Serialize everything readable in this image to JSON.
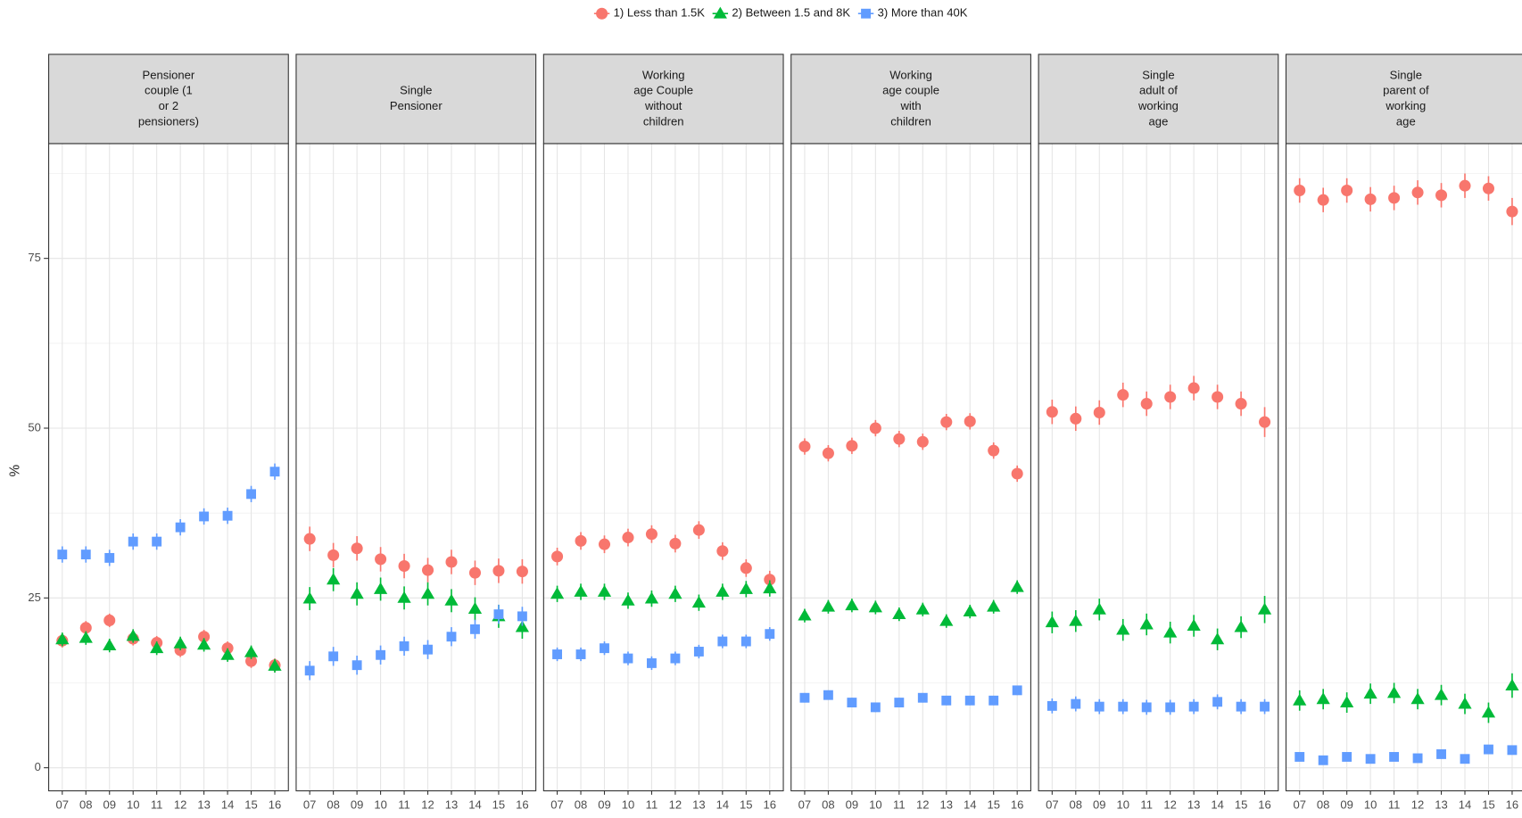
{
  "chart_data": {
    "type": "scatter",
    "y_label": "%",
    "ylim": [
      -3.4,
      91.9
    ],
    "yticks": [
      0,
      25,
      50,
      75
    ],
    "grid": true,
    "legend": "top",
    "categories": [
      "07",
      "08",
      "09",
      "10",
      "11",
      "12",
      "13",
      "14",
      "15",
      "16"
    ],
    "series": [
      {
        "name": "1) Less than 1.5K",
        "color": "#f8766d",
        "marker": "circle"
      },
      {
        "name": "2) Between 1.5 and 8K",
        "color": "#00ba38",
        "marker": "triangle"
      },
      {
        "name": "3) More than 40K",
        "color": "#619cff",
        "marker": "square"
      }
    ],
    "panels": [
      {
        "title": [
          "Pensioner",
          "couple (1",
          "or 2",
          "pensioners)"
        ],
        "series": [
          {
            "values": [
              18.7,
              20.6,
              21.7,
              19,
              18.4,
              17.3,
              19.3,
              17.6,
              15.7,
              15.1
            ],
            "errors": [
              1,
              1,
              1,
              1,
              1,
              1,
              1,
              1,
              1,
              1
            ]
          },
          {
            "values": [
              18.9,
              19.1,
              18,
              19.4,
              17.6,
              18.3,
              18.1,
              16.6,
              17,
              15
            ],
            "errors": [
              1,
              1,
              1,
              1,
              1,
              1,
              1,
              1,
              1,
              1
            ]
          },
          {
            "values": [
              31.4,
              31.4,
              30.9,
              33.3,
              33.3,
              35.4,
              37,
              37.1,
              40.3,
              43.6
            ],
            "errors": [
              1.2,
              1.2,
              1.2,
              1.2,
              1.2,
              1.2,
              1.2,
              1.2,
              1.2,
              1.2
            ]
          }
        ]
      },
      {
        "title": [
          "Single",
          "Pensioner"
        ],
        "series": [
          {
            "values": [
              33.7,
              31.3,
              32.3,
              30.7,
              29.7,
              29.1,
              30.3,
              28.7,
              29,
              28.9
            ],
            "errors": [
              1.8,
              1.8,
              1.8,
              1.8,
              1.8,
              1.8,
              1.8,
              1.8,
              1.8,
              1.8
            ]
          },
          {
            "values": [
              24.9,
              27.7,
              25.6,
              26.3,
              25,
              25.6,
              24.6,
              23.4,
              22.3,
              20.7
            ],
            "errors": [
              1.7,
              1.7,
              1.7,
              1.7,
              1.7,
              1.7,
              1.7,
              1.7,
              1.7,
              1.7
            ]
          },
          {
            "values": [
              14.3,
              16.4,
              15.1,
              16.6,
              17.9,
              17.4,
              19.3,
              20.4,
              22.6,
              22.3
            ],
            "errors": [
              1.4,
              1.4,
              1.4,
              1.4,
              1.4,
              1.4,
              1.4,
              1.4,
              1.4,
              1.4
            ]
          }
        ]
      },
      {
        "title": [
          "Working",
          "age Couple",
          "without",
          "children"
        ],
        "series": [
          {
            "values": [
              31.1,
              33.4,
              32.9,
              33.9,
              34.4,
              33,
              35,
              31.9,
              29.4,
              27.7
            ],
            "errors": [
              1.3,
              1.3,
              1.3,
              1.3,
              1.3,
              1.3,
              1.3,
              1.3,
              1.3,
              1.3
            ]
          },
          {
            "values": [
              25.6,
              25.9,
              25.9,
              24.6,
              24.9,
              25.6,
              24.3,
              25.9,
              26.3,
              26.4
            ],
            "errors": [
              1.2,
              1.2,
              1.2,
              1.2,
              1.2,
              1.2,
              1.2,
              1.2,
              1.2,
              1.2
            ]
          },
          {
            "values": [
              16.7,
              16.7,
              17.6,
              16.1,
              15.4,
              16.1,
              17.1,
              18.6,
              18.6,
              19.7
            ],
            "errors": [
              1,
              1,
              1,
              1,
              1,
              1,
              1,
              1,
              1,
              1
            ]
          }
        ]
      },
      {
        "title": [
          "Working",
          "age couple",
          "with",
          "children"
        ],
        "series": [
          {
            "values": [
              47.3,
              46.3,
              47.4,
              50,
              48.4,
              48,
              50.9,
              51,
              46.7,
              43.3
            ],
            "errors": [
              1.2,
              1.2,
              1.2,
              1.2,
              1.2,
              1.2,
              1.2,
              1.2,
              1.2,
              1.2
            ]
          },
          {
            "values": [
              22.4,
              23.7,
              23.9,
              23.6,
              22.6,
              23.3,
              21.6,
              23,
              23.7,
              26.6
            ],
            "errors": [
              1,
              1,
              1,
              1,
              1,
              1,
              1,
              1,
              1,
              1
            ]
          },
          {
            "values": [
              10.3,
              10.7,
              9.6,
              8.9,
              9.6,
              10.3,
              9.9,
              9.9,
              9.9,
              11.4
            ],
            "errors": [
              0.7,
              0.7,
              0.7,
              0.7,
              0.7,
              0.7,
              0.7,
              0.7,
              0.7,
              0.7
            ]
          }
        ]
      },
      {
        "title": [
          "Single",
          "adult of",
          "working",
          "age"
        ],
        "series": [
          {
            "values": [
              52.4,
              51.4,
              52.3,
              54.9,
              53.6,
              54.6,
              55.9,
              54.6,
              53.6,
              50.9
            ],
            "errors": [
              1.8,
              1.8,
              1.8,
              1.8,
              1.8,
              1.8,
              1.8,
              1.8,
              1.8,
              2.2
            ]
          },
          {
            "values": [
              21.4,
              21.6,
              23.3,
              20.3,
              21.1,
              19.9,
              20.9,
              18.9,
              20.7,
              23.3
            ],
            "errors": [
              1.6,
              1.6,
              1.6,
              1.6,
              1.6,
              1.6,
              1.6,
              1.6,
              1.6,
              2
            ]
          },
          {
            "values": [
              9.1,
              9.4,
              9,
              9,
              8.9,
              8.9,
              9,
              9.7,
              9,
              9
            ],
            "errors": [
              1.1,
              1.1,
              1.1,
              1.1,
              1.1,
              1.1,
              1.1,
              1.1,
              1.1,
              1.1
            ]
          }
        ]
      },
      {
        "title": [
          "Single",
          "parent of",
          "working",
          "age"
        ],
        "series": [
          {
            "values": [
              85,
              83.6,
              85,
              83.7,
              83.9,
              84.7,
              84.3,
              85.7,
              85.3,
              81.9
            ],
            "errors": [
              1.8,
              1.8,
              1.8,
              1.8,
              1.8,
              1.8,
              1.8,
              1.8,
              1.8,
              2
            ]
          },
          {
            "values": [
              9.9,
              10.1,
              9.6,
              10.9,
              11,
              10.1,
              10.7,
              9.4,
              8.1,
              12.1
            ],
            "errors": [
              1.5,
              1.5,
              1.5,
              1.5,
              1.5,
              1.5,
              1.5,
              1.5,
              1.5,
              1.8
            ]
          },
          {
            "values": [
              1.6,
              1.1,
              1.6,
              1.3,
              1.6,
              1.4,
              2,
              1.3,
              2.7,
              2.6
            ],
            "errors": [
              0.6,
              0.6,
              0.6,
              0.6,
              0.6,
              0.6,
              0.6,
              0.6,
              0.6,
              0.6
            ]
          }
        ]
      }
    ]
  }
}
